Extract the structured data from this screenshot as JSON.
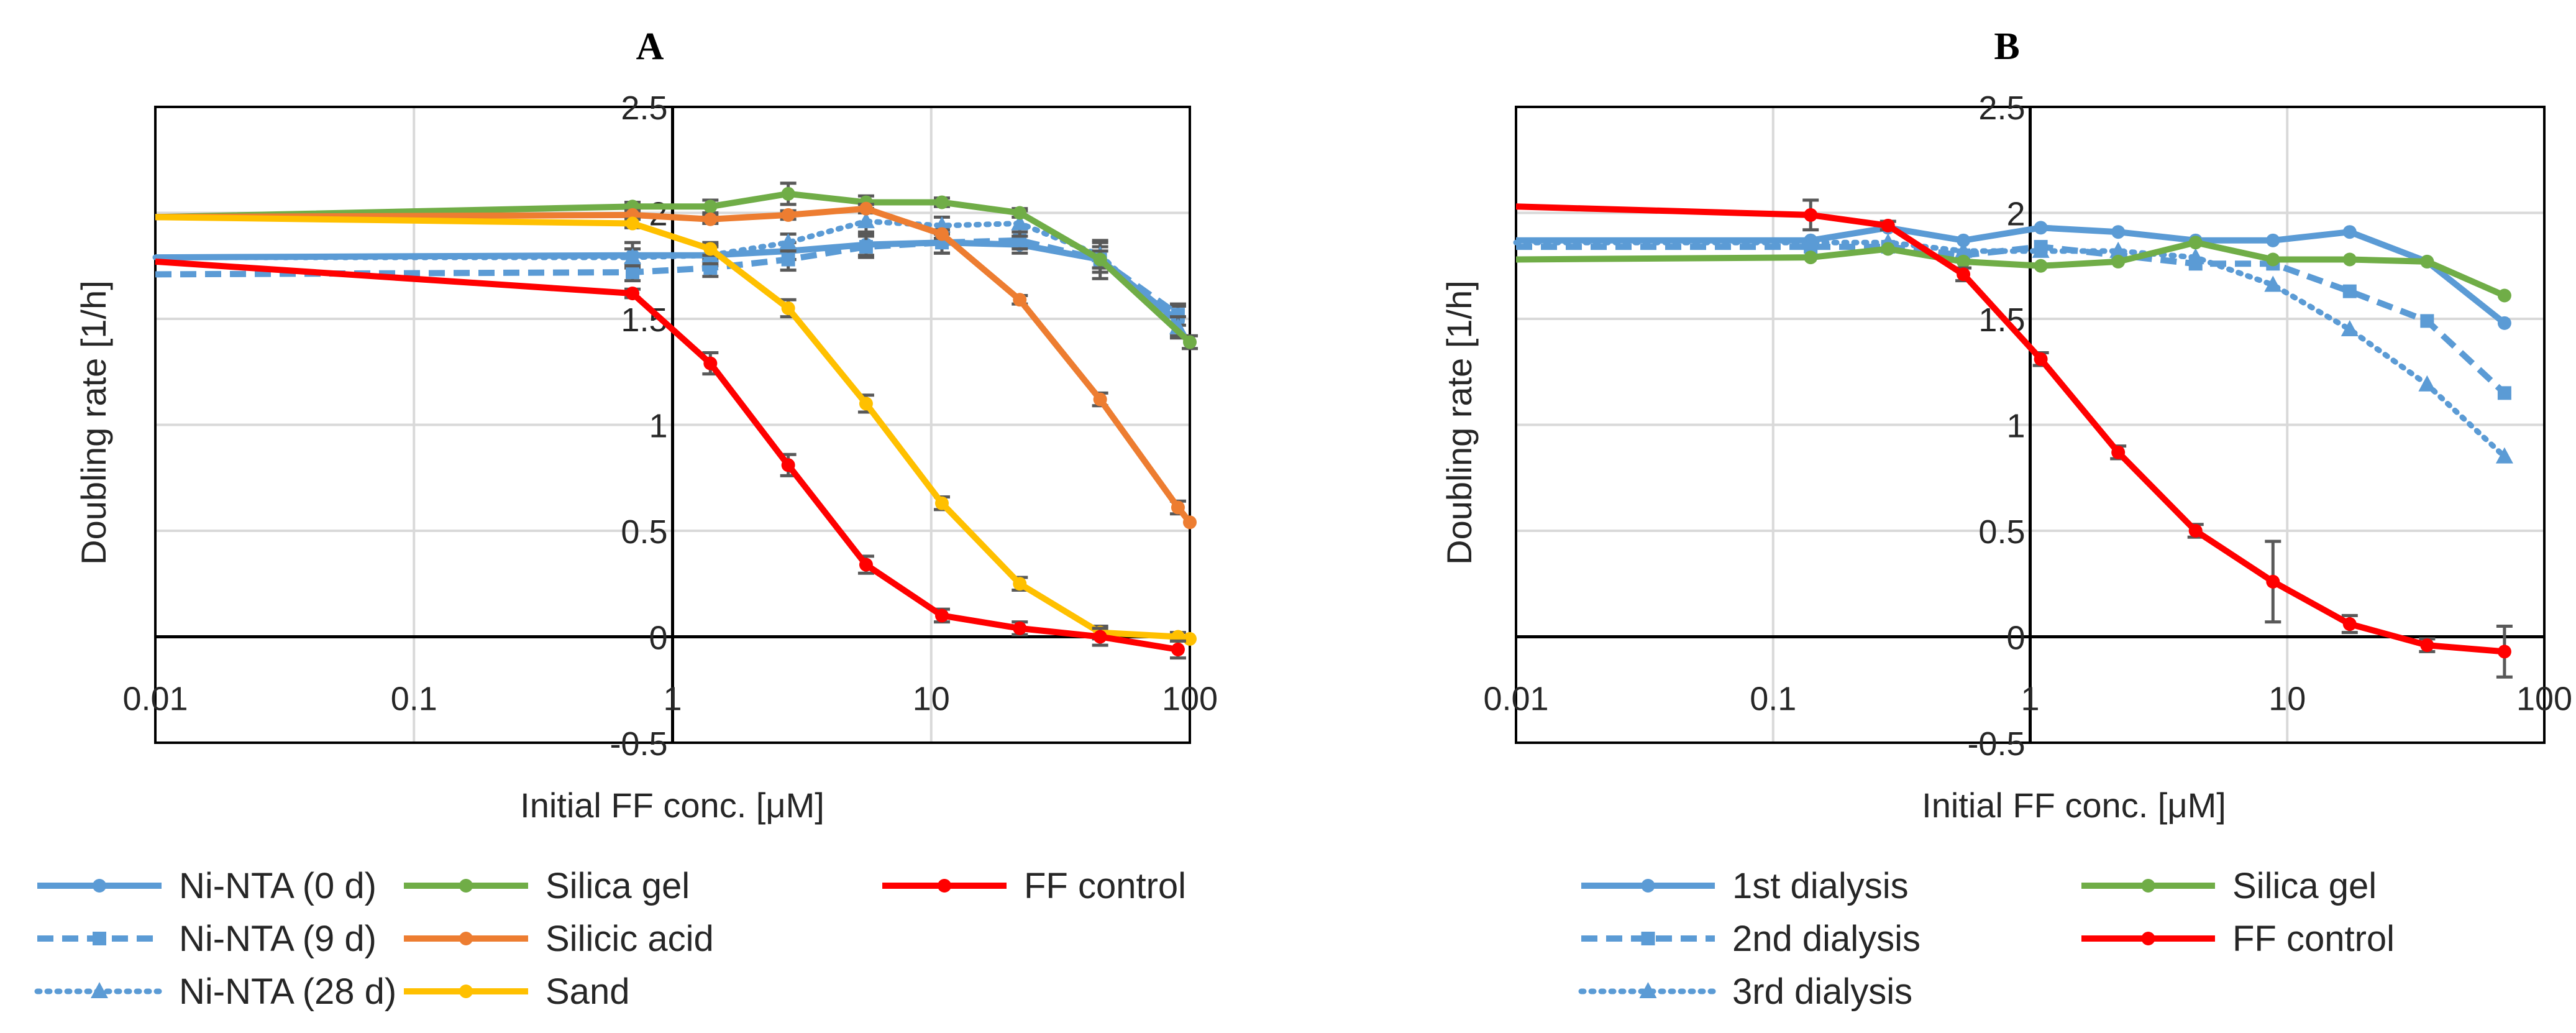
{
  "chart_data": [
    {
      "type": "line",
      "panel": "A",
      "title": "A",
      "xlabel": "Initial FF conc. [μM]",
      "ylabel": "Doubling rate [1/h]",
      "x_scale": "log",
      "xlim": [
        0.01,
        100
      ],
      "ylim": [
        -0.5,
        2.5
      ],
      "x_ticks": [
        0.01,
        0.1,
        1,
        10,
        100
      ],
      "x_tick_labels": [
        "0.01",
        "0.1",
        "1",
        "10",
        "100"
      ],
      "y_ticks": [
        -0.5,
        0,
        0.5,
        1,
        1.5,
        2,
        2.5
      ],
      "y_tick_labels": [
        "-0.5",
        "0",
        "0.5",
        "1",
        "1.5",
        "2",
        "2.5"
      ],
      "grid": true,
      "legend_position": "bottom",
      "series": [
        {
          "name": "Ni-NTA (0 d)",
          "color": "#5b9bd5",
          "dash": "solid",
          "marker": "circle",
          "x": [
            0.01,
            0.7,
            1.4,
            2.8,
            5.6,
            11,
            22,
            45,
            90
          ],
          "y": [
            1.79,
            1.8,
            1.8,
            1.82,
            1.85,
            1.86,
            1.85,
            1.78,
            1.49
          ],
          "err": [
            0,
            0.06,
            0.05,
            0.04,
            0.05,
            0.05,
            0.04,
            0.09,
            0.07
          ]
        },
        {
          "name": "Ni-NTA (9 d)",
          "color": "#5b9bd5",
          "dash": "dash",
          "marker": "square",
          "x": [
            0.01,
            0.7,
            1.4,
            2.8,
            5.6,
            11,
            22,
            45,
            90
          ],
          "y": [
            1.71,
            1.72,
            1.74,
            1.78,
            1.84,
            1.86,
            1.87,
            1.78,
            1.52
          ],
          "err": [
            0,
            0.04,
            0.04,
            0.05,
            0.05,
            0.05,
            0.04,
            0.06,
            0.05
          ]
        },
        {
          "name": "Ni-NTA (28 d)",
          "color": "#5b9bd5",
          "dash": "dot",
          "marker": "triangle",
          "x": [
            0.01,
            0.7,
            1.4,
            2.8,
            5.6,
            11,
            22,
            45,
            90
          ],
          "y": [
            1.79,
            1.79,
            1.8,
            1.86,
            1.96,
            1.94,
            1.95,
            1.8,
            1.46
          ],
          "err": [
            0,
            0.04,
            0.04,
            0.04,
            0.05,
            0.04,
            0.06,
            0.06,
            0.05
          ]
        },
        {
          "name": "Silica gel",
          "color": "#70ad47",
          "dash": "solid",
          "marker": "circle",
          "x": [
            0.01,
            0.7,
            1.4,
            2.8,
            5.6,
            11,
            22,
            45,
            100
          ],
          "y": [
            1.98,
            2.03,
            2.03,
            2.09,
            2.05,
            2.05,
            2.0,
            1.78,
            1.39
          ],
          "err": [
            0,
            0.02,
            0.03,
            0.05,
            0.03,
            0.02,
            0.02,
            0.04,
            0.03
          ]
        },
        {
          "name": "Silicic acid",
          "color": "#ed7d31",
          "dash": "solid",
          "marker": "circle",
          "x": [
            0.01,
            0.7,
            1.4,
            2.8,
            5.6,
            11,
            22,
            45,
            90,
            100
          ],
          "y": [
            1.98,
            1.99,
            1.97,
            1.99,
            2.02,
            1.9,
            1.59,
            1.12,
            0.61,
            0.54
          ],
          "err": [
            0,
            0.02,
            0.02,
            0.02,
            0.02,
            0.02,
            0.02,
            0.03,
            0.03,
            0
          ]
        },
        {
          "name": "Sand",
          "color": "#ffc000",
          "dash": "solid",
          "marker": "circle",
          "x": [
            0.01,
            0.7,
            1.4,
            2.8,
            5.6,
            11,
            22,
            45,
            90,
            100
          ],
          "y": [
            1.98,
            1.95,
            1.83,
            1.55,
            1.1,
            0.63,
            0.25,
            0.02,
            0.0,
            -0.01
          ],
          "err": [
            0,
            0.02,
            0.03,
            0.04,
            0.04,
            0.03,
            0.03,
            0.03,
            0.02,
            0
          ]
        },
        {
          "name": "FF control",
          "color": "#ff0000",
          "dash": "solid",
          "marker": "circle",
          "x": [
            0.01,
            0.7,
            1.4,
            2.8,
            5.6,
            11,
            22,
            45,
            90
          ],
          "y": [
            1.77,
            1.62,
            1.29,
            0.81,
            0.34,
            0.1,
            0.04,
            0.0,
            -0.06
          ],
          "err": [
            0,
            0.02,
            0.05,
            0.05,
            0.04,
            0.03,
            0.03,
            0.04,
            0.04
          ]
        }
      ]
    },
    {
      "type": "line",
      "panel": "B",
      "title": "B",
      "xlabel": "Initial FF conc. [μM]",
      "ylabel": "Doubling rate [1/h]",
      "x_scale": "log",
      "xlim": [
        0.01,
        100
      ],
      "ylim": [
        -0.5,
        2.5
      ],
      "x_ticks": [
        0.01,
        0.1,
        1,
        10,
        100
      ],
      "x_tick_labels": [
        "0.01",
        "0.1",
        "1",
        "10",
        "100"
      ],
      "y_ticks": [
        -0.5,
        0,
        0.5,
        1,
        1.5,
        2,
        2.5
      ],
      "y_tick_labels": [
        "-0.5",
        "0",
        "0.5",
        "1",
        "1.5",
        "2",
        "2.5"
      ],
      "grid": true,
      "legend_position": "bottom",
      "series": [
        {
          "name": "1st dialysis",
          "color": "#5b9bd5",
          "dash": "solid",
          "marker": "circle",
          "x": [
            0.01,
            0.14,
            0.28,
            0.55,
            1.1,
            2.2,
            4.4,
            8.8,
            17.5,
            35,
            70
          ],
          "y": [
            1.87,
            1.87,
            1.93,
            1.87,
            1.93,
            1.91,
            1.87,
            1.87,
            1.91,
            1.77,
            1.48
          ],
          "err": [
            0,
            0,
            0,
            0,
            0,
            0,
            0,
            0,
            0,
            0,
            0
          ]
        },
        {
          "name": "2nd dialysis",
          "color": "#5b9bd5",
          "dash": "dash",
          "marker": "square",
          "x": [
            0.01,
            0.14,
            0.28,
            0.55,
            1.1,
            2.2,
            4.4,
            8.8,
            17.5,
            35,
            70
          ],
          "y": [
            1.84,
            1.84,
            1.84,
            1.8,
            1.84,
            1.8,
            1.76,
            1.76,
            1.63,
            1.49,
            1.15
          ],
          "err": [
            0,
            0,
            0,
            0,
            0,
            0,
            0,
            0,
            0,
            0,
            0
          ]
        },
        {
          "name": "3rd dialysis",
          "color": "#5b9bd5",
          "dash": "dot",
          "marker": "triangle",
          "x": [
            0.01,
            0.14,
            0.28,
            0.55,
            1.1,
            2.2,
            4.4,
            8.8,
            17.5,
            35,
            70
          ],
          "y": [
            1.86,
            1.86,
            1.86,
            1.82,
            1.82,
            1.82,
            1.79,
            1.66,
            1.45,
            1.19,
            0.85
          ],
          "err": [
            0,
            0,
            0,
            0,
            0,
            0,
            0,
            0,
            0,
            0,
            0
          ]
        },
        {
          "name": "Silica gel",
          "color": "#70ad47",
          "dash": "solid",
          "marker": "circle",
          "x": [
            0.01,
            0.14,
            0.28,
            0.55,
            1.1,
            2.2,
            4.4,
            8.8,
            17.5,
            35,
            70
          ],
          "y": [
            1.78,
            1.79,
            1.83,
            1.77,
            1.75,
            1.77,
            1.86,
            1.78,
            1.78,
            1.77,
            1.61
          ],
          "err": [
            0,
            0,
            0,
            0,
            0,
            0,
            0,
            0,
            0,
            0,
            0
          ]
        },
        {
          "name": "FF control",
          "color": "#ff0000",
          "dash": "solid",
          "marker": "circle",
          "x": [
            0.01,
            0.14,
            0.28,
            0.55,
            1.1,
            2.2,
            4.4,
            8.8,
            17.5,
            35,
            70
          ],
          "y": [
            2.03,
            1.99,
            1.94,
            1.71,
            1.31,
            0.87,
            0.5,
            0.26,
            0.06,
            -0.04,
            -0.07
          ],
          "err": [
            0,
            0.07,
            0.02,
            0.03,
            0.03,
            0.03,
            0.03,
            0.19,
            0.04,
            0.03,
            0.12
          ]
        }
      ]
    }
  ]
}
